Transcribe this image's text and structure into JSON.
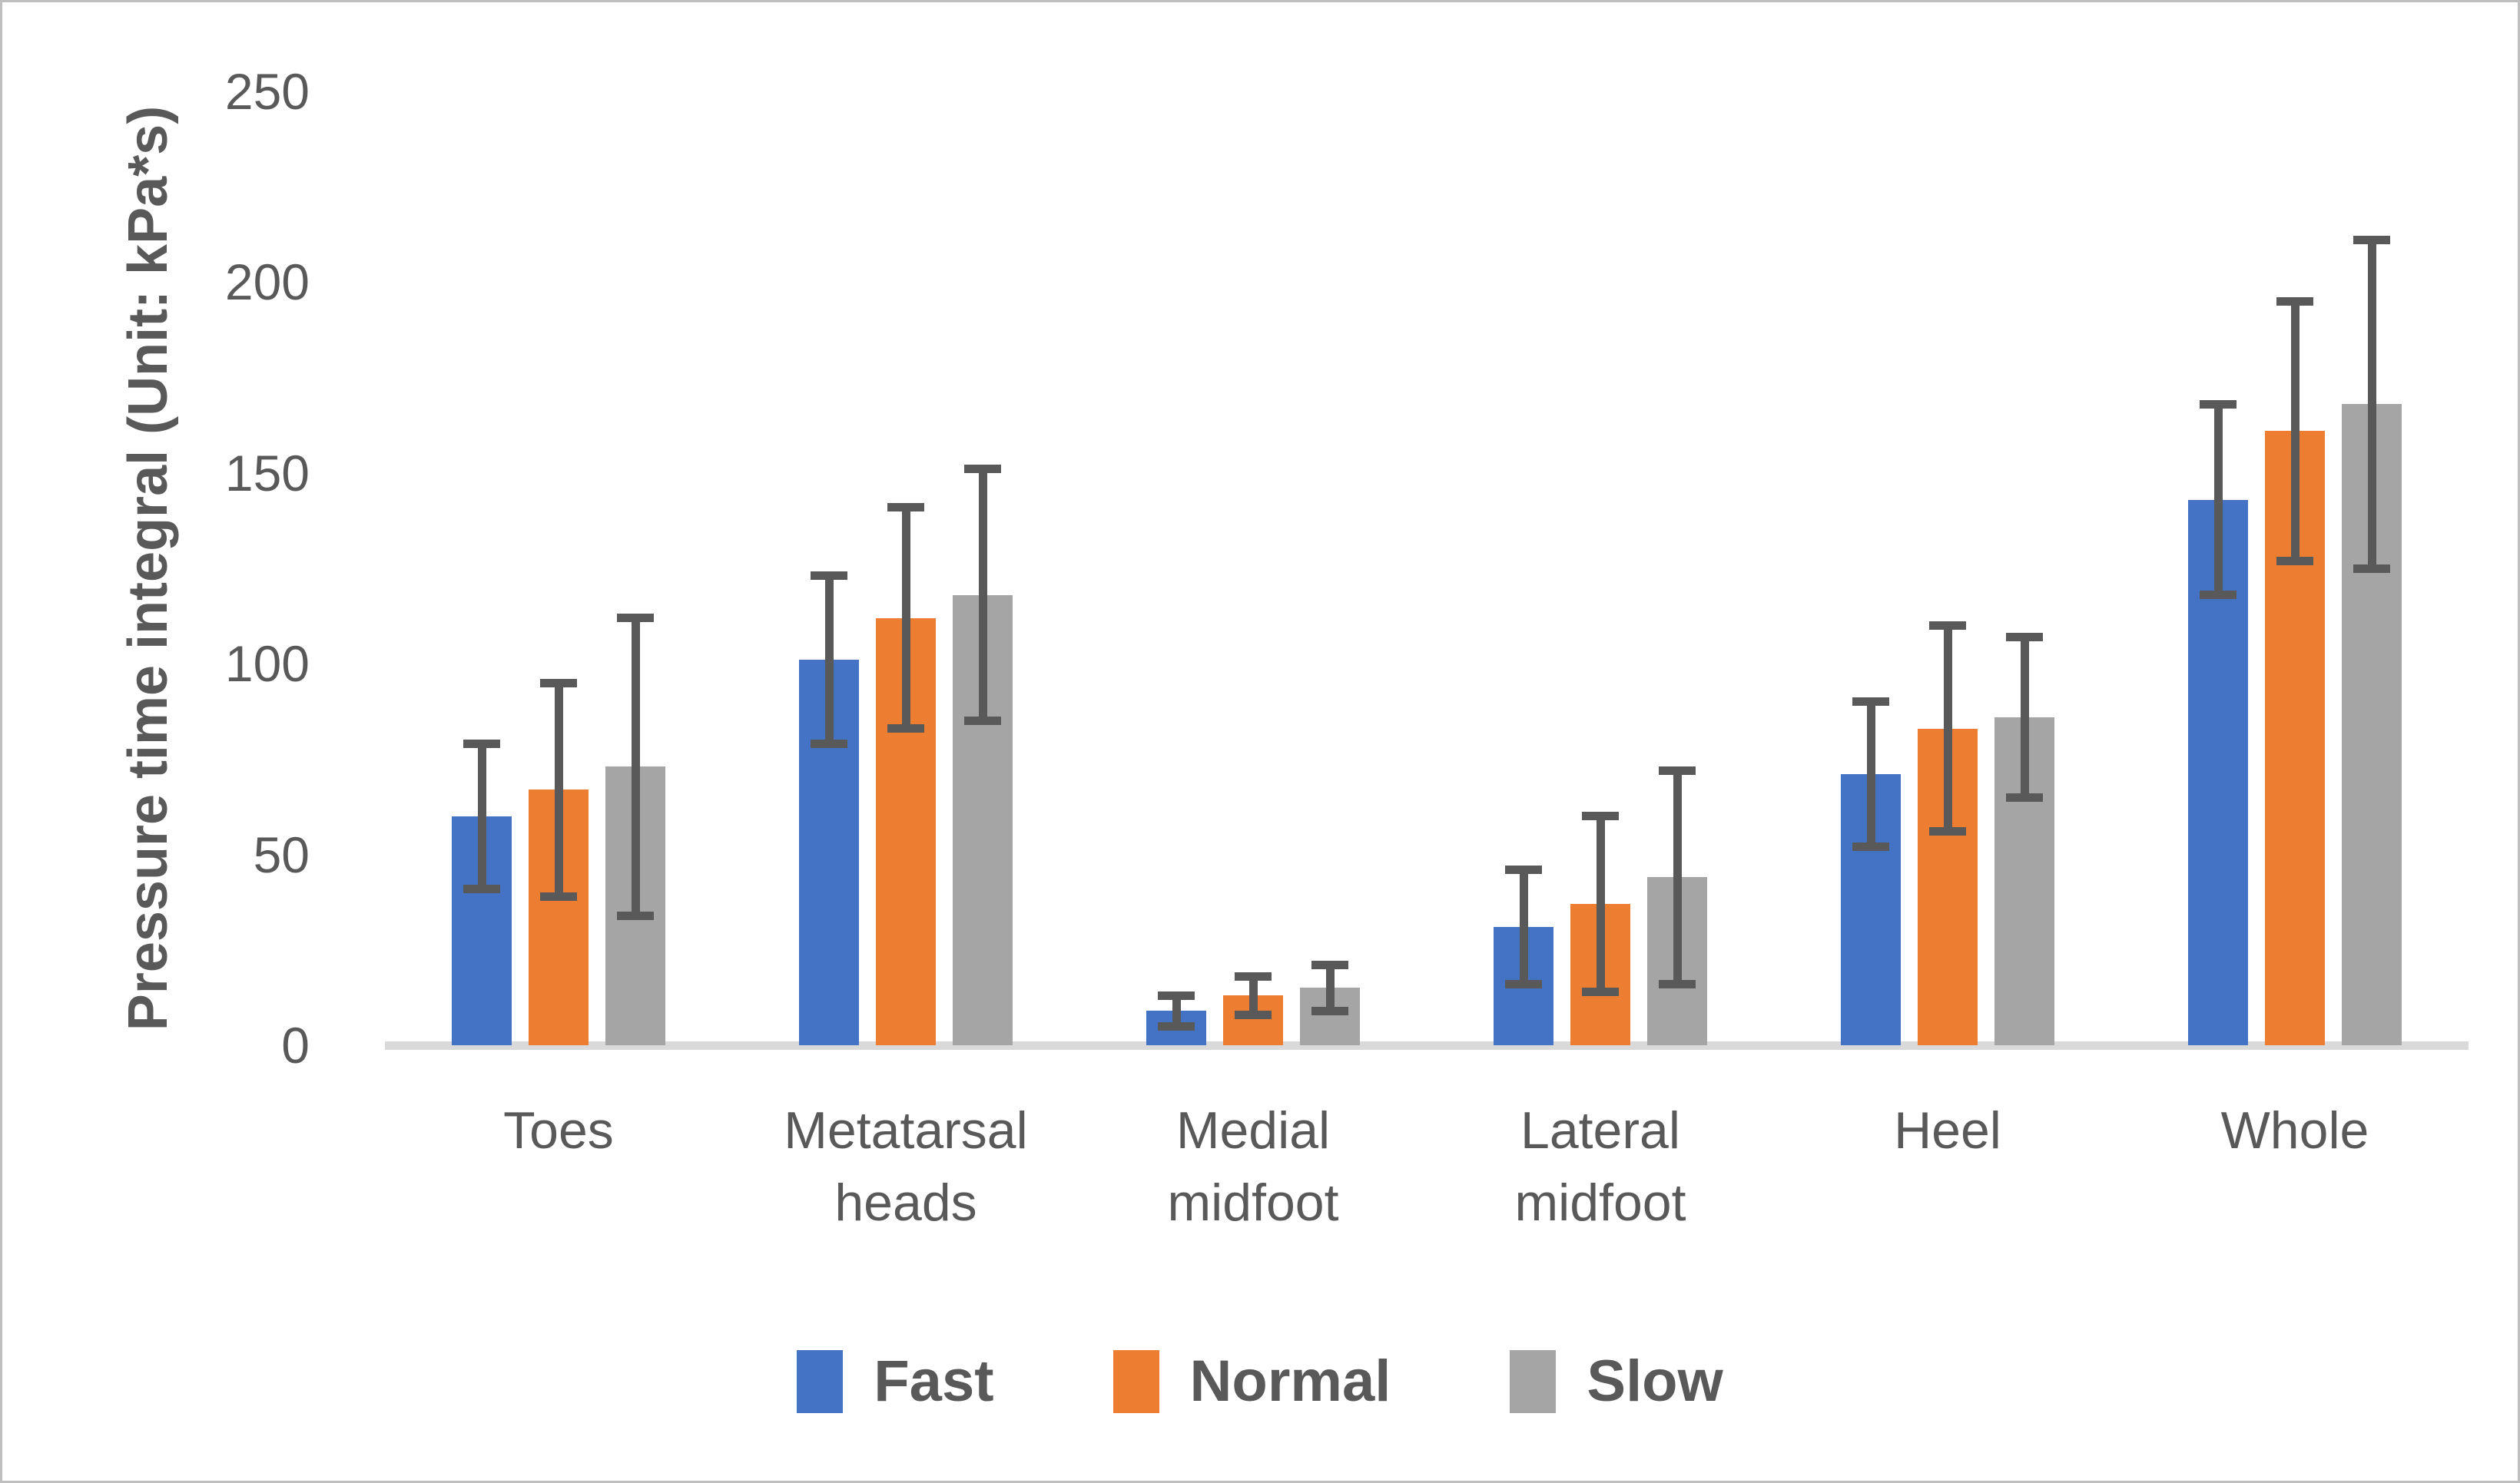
{
  "figure": {
    "background_color": "#ffffff",
    "border_color": "#bfbfbf",
    "text_color": "#595959"
  },
  "chart_data": {
    "type": "bar",
    "title": "",
    "ylabel": "Pressure time integral (Unit: kPa*s)",
    "xlabel": "",
    "ylim": [
      0,
      250
    ],
    "yticks": [
      0,
      50,
      100,
      150,
      200,
      250
    ],
    "grid": false,
    "legend_position": "bottom",
    "categories": [
      "Toes",
      "Metatarsal\nheads",
      "Medial\nmidfoot",
      "Lateral\nmidfoot",
      "Heel",
      "Whole"
    ],
    "series": [
      {
        "name": "Fast",
        "color": "#4472c4",
        "values": [
          60,
          101,
          9,
          31,
          71,
          143
        ],
        "errors": [
          19,
          22,
          4,
          15,
          19,
          25
        ]
      },
      {
        "name": "Normal",
        "color": "#ed7d31",
        "values": [
          67,
          112,
          13,
          37,
          83,
          161
        ],
        "errors": [
          28,
          29,
          5,
          23,
          27,
          34
        ]
      },
      {
        "name": "Slow",
        "color": "#a5a5a5",
        "values": [
          73,
          118,
          15,
          44,
          86,
          168
        ],
        "errors": [
          39,
          33,
          6,
          28,
          21,
          43
        ]
      }
    ],
    "error_bar_color": "#595959",
    "axis_line_color": "#d9d9d9"
  }
}
